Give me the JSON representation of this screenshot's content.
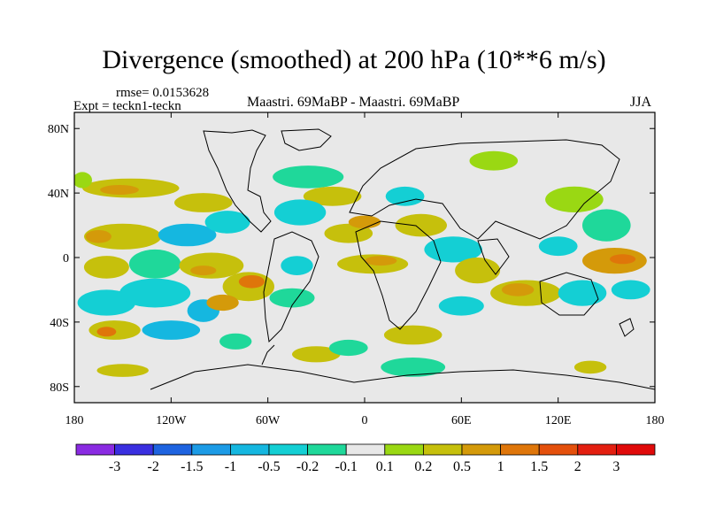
{
  "chart_data": {
    "type": "heatmap",
    "title": "Divergence (smoothed) at 200 hPa (10**6 m/s)",
    "rmse_label": "rmse= 0.0153628",
    "experiment_label": "Expt = teckn1-teckn",
    "comparison_label": "Maastri.  69MaBP - Maastri.  69MaBP",
    "season": "JJA",
    "x_axis": {
      "range": [
        -180,
        180
      ],
      "ticks": [
        {
          "value": -180,
          "label": "180"
        },
        {
          "value": -120,
          "label": "120W"
        },
        {
          "value": -60,
          "label": "60W"
        },
        {
          "value": 0,
          "label": "0"
        },
        {
          "value": 60,
          "label": "60E"
        },
        {
          "value": 120,
          "label": "120E"
        },
        {
          "value": 180,
          "label": "180"
        }
      ]
    },
    "y_axis": {
      "range": [
        -90,
        90
      ],
      "ticks": [
        {
          "value": 80,
          "label": "80N"
        },
        {
          "value": 40,
          "label": "40N"
        },
        {
          "value": 0,
          "label": "0"
        },
        {
          "value": -40,
          "label": "40S"
        },
        {
          "value": -80,
          "label": "80S"
        }
      ]
    },
    "colorbar": {
      "labels": [
        "-3",
        "-2",
        "-1.5",
        "-1",
        "-0.5",
        "-0.2",
        "-0.1",
        "0.1",
        "0.2",
        "0.5",
        "1",
        "1.5",
        "2",
        "3"
      ],
      "colors": [
        "#8a2be2",
        "#3a2fe0",
        "#1e63e0",
        "#1c9be6",
        "#15b7e0",
        "#14cfd4",
        "#1fd89a",
        "#e8e8e8",
        "#9ad813",
        "#c6c00c",
        "#d49a0a",
        "#df760a",
        "#e4500c",
        "#e31f10",
        "#e00a0a"
      ]
    },
    "features": [
      {
        "lon": -145,
        "lat": 43,
        "rx": 30,
        "ry": 6,
        "level": 9
      },
      {
        "lon": -152,
        "lat": 42,
        "rx": 12,
        "ry": 3,
        "level": 10
      },
      {
        "lon": -175,
        "lat": 48,
        "rx": 6,
        "ry": 5,
        "level": 8
      },
      {
        "lon": -100,
        "lat": 34,
        "rx": 18,
        "ry": 6,
        "level": 9
      },
      {
        "lon": -35,
        "lat": 50,
        "rx": 22,
        "ry": 7,
        "level": 6
      },
      {
        "lon": -20,
        "lat": 38,
        "rx": 18,
        "ry": 6,
        "level": 9
      },
      {
        "lon": -150,
        "lat": 13,
        "rx": 24,
        "ry": 8,
        "level": 9
      },
      {
        "lon": -165,
        "lat": 13,
        "rx": 8,
        "ry": 4,
        "level": 10
      },
      {
        "lon": -110,
        "lat": 14,
        "rx": 18,
        "ry": 7,
        "level": 4
      },
      {
        "lon": -85,
        "lat": 22,
        "rx": 14,
        "ry": 7,
        "level": 5
      },
      {
        "lon": -40,
        "lat": 28,
        "rx": 16,
        "ry": 8,
        "level": 5
      },
      {
        "lon": -10,
        "lat": 15,
        "rx": 15,
        "ry": 6,
        "level": 9
      },
      {
        "lon": 0,
        "lat": 22,
        "rx": 10,
        "ry": 4,
        "level": 10
      },
      {
        "lon": -160,
        "lat": -6,
        "rx": 14,
        "ry": 7,
        "level": 9
      },
      {
        "lon": -130,
        "lat": -4,
        "rx": 16,
        "ry": 9,
        "level": 6
      },
      {
        "lon": -95,
        "lat": -5,
        "rx": 20,
        "ry": 8,
        "level": 9
      },
      {
        "lon": -100,
        "lat": -8,
        "rx": 8,
        "ry": 3,
        "level": 10
      },
      {
        "lon": -42,
        "lat": -5,
        "rx": 10,
        "ry": 6,
        "level": 5
      },
      {
        "lon": 5,
        "lat": -4,
        "rx": 22,
        "ry": 6,
        "level": 9
      },
      {
        "lon": 10,
        "lat": -2,
        "rx": 10,
        "ry": 3,
        "level": 10
      },
      {
        "lon": -160,
        "lat": -28,
        "rx": 18,
        "ry": 8,
        "level": 5
      },
      {
        "lon": -130,
        "lat": -22,
        "rx": 22,
        "ry": 9,
        "level": 5
      },
      {
        "lon": -100,
        "lat": -33,
        "rx": 10,
        "ry": 7,
        "level": 4
      },
      {
        "lon": -72,
        "lat": -18,
        "rx": 16,
        "ry": 9,
        "level": 9
      },
      {
        "lon": -70,
        "lat": -15,
        "rx": 8,
        "ry": 4,
        "level": 11
      },
      {
        "lon": -88,
        "lat": -28,
        "rx": 10,
        "ry": 5,
        "level": 10
      },
      {
        "lon": -45,
        "lat": -25,
        "rx": 14,
        "ry": 6,
        "level": 6
      },
      {
        "lon": -155,
        "lat": -45,
        "rx": 16,
        "ry": 6,
        "level": 9
      },
      {
        "lon": -160,
        "lat": -46,
        "rx": 6,
        "ry": 3,
        "level": 11
      },
      {
        "lon": -120,
        "lat": -45,
        "rx": 18,
        "ry": 6,
        "level": 4
      },
      {
        "lon": -80,
        "lat": -52,
        "rx": 10,
        "ry": 5,
        "level": 6
      },
      {
        "lon": -30,
        "lat": -60,
        "rx": 15,
        "ry": 5,
        "level": 9
      },
      {
        "lon": -10,
        "lat": -56,
        "rx": 12,
        "ry": 5,
        "level": 6
      },
      {
        "lon": 30,
        "lat": -48,
        "rx": 18,
        "ry": 6,
        "level": 9
      },
      {
        "lon": 35,
        "lat": 20,
        "rx": 16,
        "ry": 7,
        "level": 9
      },
      {
        "lon": 25,
        "lat": 38,
        "rx": 12,
        "ry": 6,
        "level": 5
      },
      {
        "lon": 55,
        "lat": 5,
        "rx": 18,
        "ry": 8,
        "level": 5
      },
      {
        "lon": 70,
        "lat": -8,
        "rx": 14,
        "ry": 8,
        "level": 9
      },
      {
        "lon": 60,
        "lat": -30,
        "rx": 14,
        "ry": 6,
        "level": 5
      },
      {
        "lon": 100,
        "lat": -22,
        "rx": 22,
        "ry": 8,
        "level": 9
      },
      {
        "lon": 95,
        "lat": -20,
        "rx": 10,
        "ry": 4,
        "level": 10
      },
      {
        "lon": 135,
        "lat": -22,
        "rx": 15,
        "ry": 8,
        "level": 5
      },
      {
        "lon": 80,
        "lat": 60,
        "rx": 15,
        "ry": 6,
        "level": 8
      },
      {
        "lon": 130,
        "lat": 36,
        "rx": 18,
        "ry": 8,
        "level": 8
      },
      {
        "lon": 150,
        "lat": 20,
        "rx": 15,
        "ry": 10,
        "level": 6
      },
      {
        "lon": 155,
        "lat": -2,
        "rx": 20,
        "ry": 8,
        "level": 10
      },
      {
        "lon": 160,
        "lat": -1,
        "rx": 8,
        "ry": 3,
        "level": 11
      },
      {
        "lon": 120,
        "lat": 7,
        "rx": 12,
        "ry": 6,
        "level": 5
      },
      {
        "lon": 165,
        "lat": -20,
        "rx": 12,
        "ry": 6,
        "level": 5
      },
      {
        "lon": 30,
        "lat": -68,
        "rx": 20,
        "ry": 6,
        "level": 6
      },
      {
        "lon": 140,
        "lat": -68,
        "rx": 10,
        "ry": 4,
        "level": 9
      },
      {
        "lon": -150,
        "lat": -70,
        "rx": 16,
        "ry": 4,
        "level": 9
      }
    ]
  }
}
